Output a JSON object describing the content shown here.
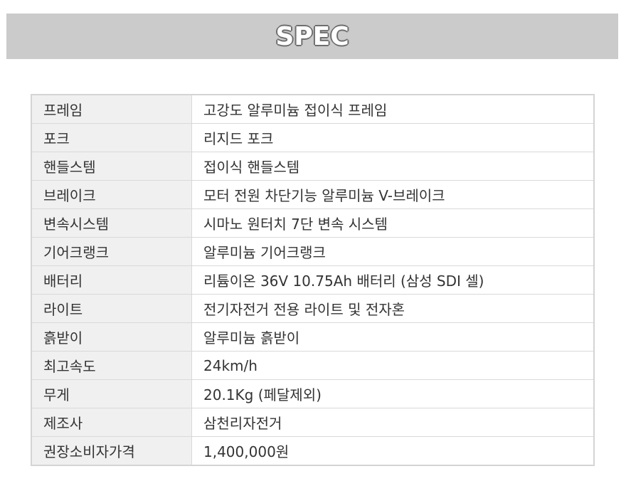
{
  "header": {
    "title": "SPEC"
  },
  "spec": {
    "rows": [
      {
        "label": "프레임",
        "value": "고강도 알루미늄 접이식 프레임"
      },
      {
        "label": "포크",
        "value": "리지드 포크"
      },
      {
        "label": "핸들스템",
        "value": "접이식 핸들스템"
      },
      {
        "label": "브레이크",
        "value": "모터 전원 차단기능 알루미늄 V-브레이크"
      },
      {
        "label": "변속시스템",
        "value": "시마노 원터치 7단 변속 시스템"
      },
      {
        "label": "기어크랭크",
        "value": "알루미늄 기어크랭크"
      },
      {
        "label": "배터리",
        "value": "리튬이온 36V 10.75Ah 배터리 (삼성 SDI 셀)"
      },
      {
        "label": "라이트",
        "value": "전기자전거 전용 라이트 및 전자혼"
      },
      {
        "label": "흙받이",
        "value": "알루미늄 흙받이"
      },
      {
        "label": "최고속도",
        "value": "24km/h"
      },
      {
        "label": "무게",
        "value": "20.1Kg (페달제외)"
      },
      {
        "label": "제조사",
        "value": "삼천리자전거"
      },
      {
        "label": "권장소비자가격",
        "value": "1,400,000원"
      }
    ]
  },
  "colors": {
    "header_band": "#cbcbcb",
    "label_cell_bg": "#f0f0f0",
    "border": "#d4d4d4",
    "text": "#333333"
  }
}
